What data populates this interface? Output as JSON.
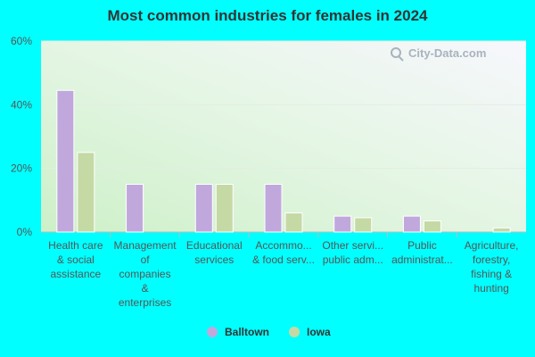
{
  "chart_data": {
    "type": "bar",
    "title": "Most common industries for females in 2024",
    "categories": [
      [
        "Health care",
        "& social",
        "assistance"
      ],
      [
        "Management",
        "of",
        "companies",
        "&",
        "enterprises"
      ],
      [
        "Educational",
        "services"
      ],
      [
        "Accommo...",
        "& food serv..."
      ],
      [
        "Other servi...",
        "public adm..."
      ],
      [
        "Public",
        "administrat..."
      ],
      [
        "Agriculture,",
        "forestry,",
        "fishing &",
        "hunting"
      ]
    ],
    "series": [
      {
        "name": "Balltown",
        "color": "#c0a8dc",
        "values": [
          44.5,
          15,
          15,
          15,
          5,
          5,
          0
        ]
      },
      {
        "name": "Iowa",
        "color": "#c5d9a5",
        "values": [
          25,
          0,
          15,
          6,
          4.5,
          3.5,
          1.3
        ]
      }
    ],
    "yticks": [
      "0%",
      "20%",
      "40%",
      "60%"
    ],
    "ylim": [
      0,
      60
    ],
    "grid": true,
    "legend_position": "bottom"
  },
  "watermark": {
    "text": "City-Data.com",
    "icon": "magnifier-chart-icon"
  }
}
